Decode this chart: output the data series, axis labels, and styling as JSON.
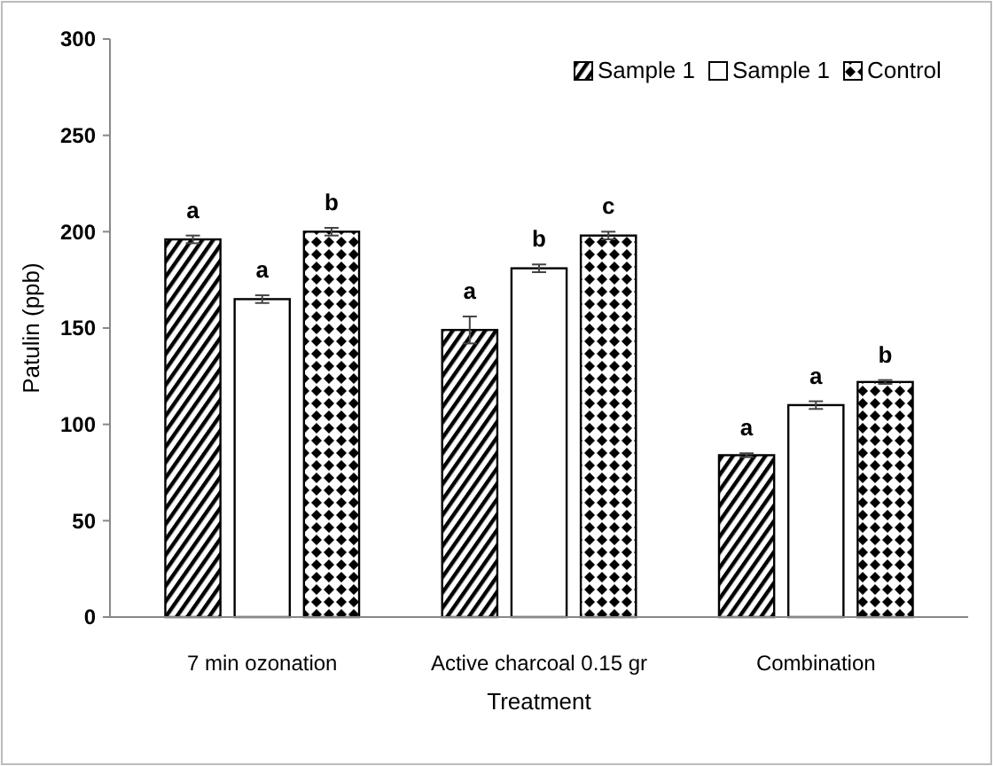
{
  "chart_data": {
    "type": "bar",
    "xlabel": "Treatment",
    "ylabel": "Patulin (ppb)",
    "categories": [
      "7 min ozonation",
      "Active charcoal  0.15 gr",
      "Combination"
    ],
    "series": [
      {
        "name": "Sample 1",
        "color": "#000000",
        "values": [
          196,
          149,
          84
        ],
        "errors": [
          2,
          7,
          1
        ],
        "value_labels": [
          "a",
          "a",
          "a"
        ]
      },
      {
        "name": "Sample 1",
        "color": "#ffffff",
        "values": [
          165,
          181,
          110
        ],
        "errors": [
          2,
          2,
          2
        ],
        "value_labels": [
          "a",
          "b",
          "a"
        ]
      },
      {
        "name": "Control",
        "color": "#000000",
        "values": [
          200,
          198,
          122
        ],
        "errors": [
          2,
          2,
          1
        ],
        "value_labels": [
          "b",
          "c",
          "b"
        ]
      }
    ],
    "ylim": [
      0,
      300
    ],
    "yticks": [
      0,
      50,
      100,
      150,
      200,
      250,
      300
    ],
    "grid": false,
    "legend": "top right"
  }
}
